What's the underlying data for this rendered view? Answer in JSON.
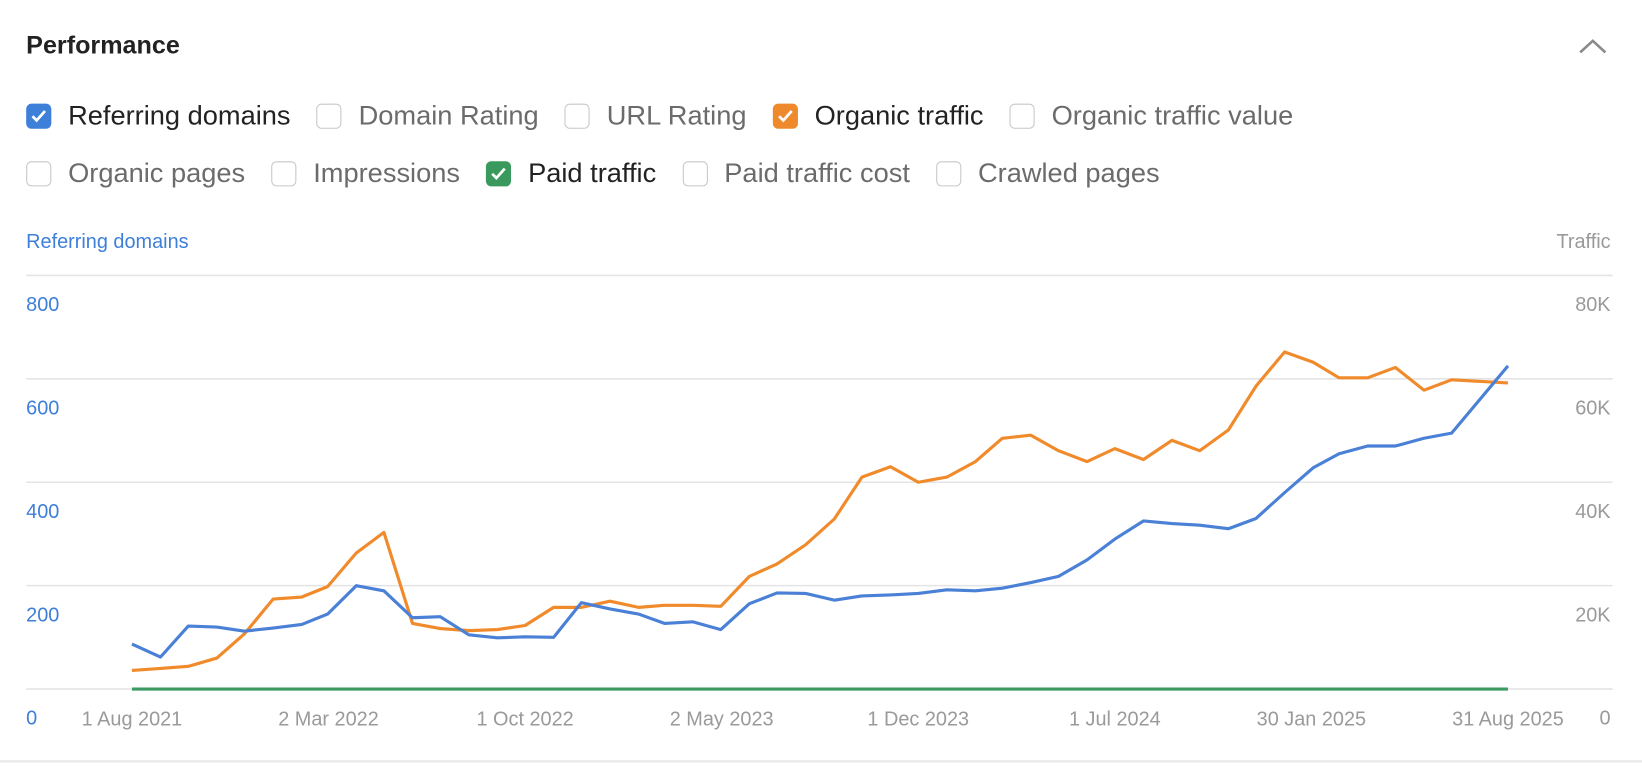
{
  "header": {
    "title": "Performance"
  },
  "metrics": [
    [
      {
        "label": "Referring domains",
        "checked": true,
        "color": "#3d7fd9"
      },
      {
        "label": "Domain Rating",
        "checked": false
      },
      {
        "label": "URL Rating",
        "checked": false
      },
      {
        "label": "Organic traffic",
        "checked": true,
        "color": "#ef8a2c"
      },
      {
        "label": "Organic traffic value",
        "checked": false
      }
    ],
    [
      {
        "label": "Organic pages",
        "checked": false
      },
      {
        "label": "Impressions",
        "checked": false
      },
      {
        "label": "Paid traffic",
        "checked": true,
        "color": "#3a9a5d"
      },
      {
        "label": "Paid traffic cost",
        "checked": false
      },
      {
        "label": "Crawled pages",
        "checked": false
      }
    ]
  ],
  "chart_data": {
    "type": "line",
    "y_label": "Referring domains",
    "y2_label": "Traffic",
    "x": [
      "2021-08-01",
      "2021-09-01",
      "2021-10-01",
      "2021-11-01",
      "2021-12-01",
      "2022-01-01",
      "2022-02-01",
      "2022-03-01",
      "2022-04-01",
      "2022-05-01",
      "2022-06-01",
      "2022-07-01",
      "2022-08-01",
      "2022-09-01",
      "2022-10-01",
      "2022-11-01",
      "2022-12-01",
      "2023-01-01",
      "2023-02-01",
      "2023-03-01",
      "2023-04-01",
      "2023-05-01",
      "2023-06-01",
      "2023-07-01",
      "2023-08-01",
      "2023-09-01",
      "2023-10-01",
      "2023-11-01",
      "2023-12-01",
      "2024-01-01",
      "2024-02-01",
      "2024-03-01",
      "2024-04-01",
      "2024-05-01",
      "2024-06-01",
      "2024-07-01",
      "2024-08-01",
      "2024-09-01",
      "2024-10-01",
      "2024-11-01",
      "2024-12-01",
      "2025-01-01",
      "2025-02-01",
      "2025-03-01",
      "2025-04-01",
      "2025-05-01",
      "2025-06-01",
      "2025-07-01",
      "2025-08-31"
    ],
    "xlim": [
      "2021-08-01",
      "2025-08-31"
    ],
    "xticks": [
      {
        "value": "2021-08-01",
        "label": "1 Aug 2021"
      },
      {
        "value": "2022-03-02",
        "label": "2 Mar 2022"
      },
      {
        "value": "2022-10-01",
        "label": "1 Oct 2022"
      },
      {
        "value": "2023-05-02",
        "label": "2 May 2023"
      },
      {
        "value": "2023-12-01",
        "label": "1 Dec 2023"
      },
      {
        "value": "2024-07-01",
        "label": "1 Jul 2024"
      },
      {
        "value": "2025-01-30",
        "label": "30 Jan 2025"
      },
      {
        "value": "2025-08-31",
        "label": "31 Aug 2025"
      }
    ],
    "ylim": [
      0,
      800
    ],
    "yticks": [
      0,
      200,
      400,
      600,
      800
    ],
    "y2lim": [
      0,
      80000
    ],
    "y2ticks": [
      0,
      {
        "value": 20000,
        "label": "20K"
      },
      {
        "value": 40000,
        "label": "40K"
      },
      {
        "value": 60000,
        "label": "60K"
      },
      {
        "value": 80000,
        "label": "80K"
      }
    ],
    "grid": true,
    "series": [
      {
        "name": "Referring domains",
        "color": "#4a80d6",
        "values": [
          87,
          62,
          122,
          120,
          112,
          118,
          125,
          145,
          200,
          190,
          138,
          140,
          105,
          99,
          101,
          100,
          167,
          155,
          145,
          127,
          130,
          115,
          165,
          186,
          185,
          172,
          180,
          182,
          185,
          192,
          190,
          195,
          206,
          218,
          250,
          290,
          325,
          320,
          317,
          310,
          330,
          380,
          428,
          455,
          470,
          470,
          485,
          495,
          625
        ]
      },
      {
        "name": "Organic traffic",
        "color": "#f08a2a",
        "axis": "y2",
        "values": [
          3600,
          4000,
          4400,
          6000,
          10700,
          17400,
          17800,
          19800,
          26300,
          30300,
          12700,
          11700,
          11300,
          11500,
          12300,
          15800,
          15800,
          17000,
          15800,
          16200,
          16200,
          16000,
          21800,
          24200,
          27900,
          32900,
          41000,
          43000,
          40000,
          41000,
          44000,
          48500,
          49100,
          46100,
          44000,
          46500,
          44400,
          48100,
          46100,
          50100,
          58600,
          65200,
          63200,
          60200,
          60200,
          62200,
          57800,
          59800,
          59200
        ]
      },
      {
        "name": "Paid traffic",
        "color": "#3c9a62",
        "axis": "y2",
        "values": [
          0,
          0,
          0,
          0,
          0,
          0,
          0,
          0,
          0,
          0,
          0,
          0,
          0,
          0,
          0,
          0,
          0,
          0,
          0,
          0,
          0,
          0,
          0,
          0,
          0,
          0,
          0,
          0,
          0,
          0,
          0,
          0,
          0,
          0,
          0,
          0,
          0,
          0,
          0,
          0,
          0,
          0,
          0,
          0,
          0,
          0,
          0,
          0,
          0
        ]
      }
    ]
  }
}
